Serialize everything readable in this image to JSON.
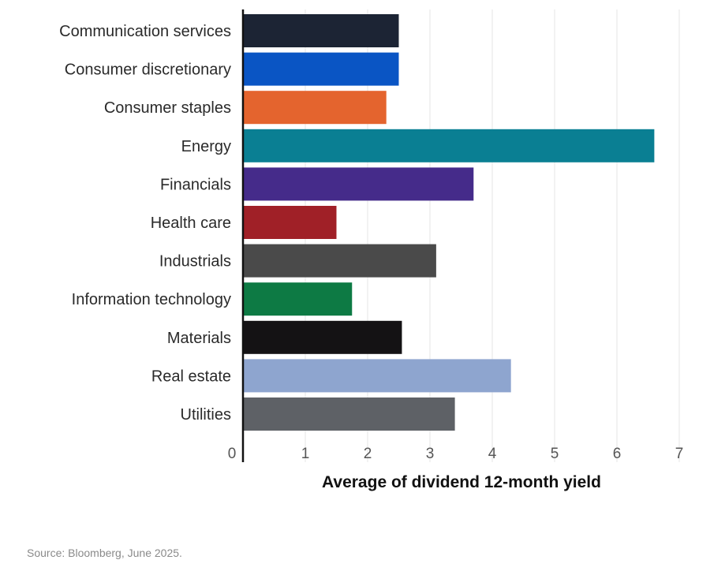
{
  "chart_data": {
    "type": "bar",
    "orientation": "horizontal",
    "categories": [
      "Communication services",
      "Consumer discretionary",
      "Consumer staples",
      "Energy",
      "Financials",
      "Health care",
      "Industrials",
      "Information technology",
      "Materials",
      "Real estate",
      "Utilities"
    ],
    "values": [
      2.5,
      2.5,
      2.3,
      6.6,
      3.7,
      1.5,
      3.1,
      1.75,
      2.55,
      4.3,
      3.4
    ],
    "colors": [
      "#1c2434",
      "#0a55c4",
      "#e4642e",
      "#0a7f93",
      "#452b8a",
      "#a02027",
      "#4a4a4a",
      "#0d7a44",
      "#141214",
      "#8ea5cf",
      "#5e6166"
    ],
    "xlim": [
      0,
      7
    ],
    "xticks": [
      "0",
      "1",
      "2",
      "3",
      "4",
      "5",
      "6",
      "7"
    ],
    "xlabel": "Average of dividend 12-month yield",
    "ylabel": "",
    "grid": "vertical",
    "legend": "none"
  },
  "source": "Source: Bloomberg, June 2025."
}
